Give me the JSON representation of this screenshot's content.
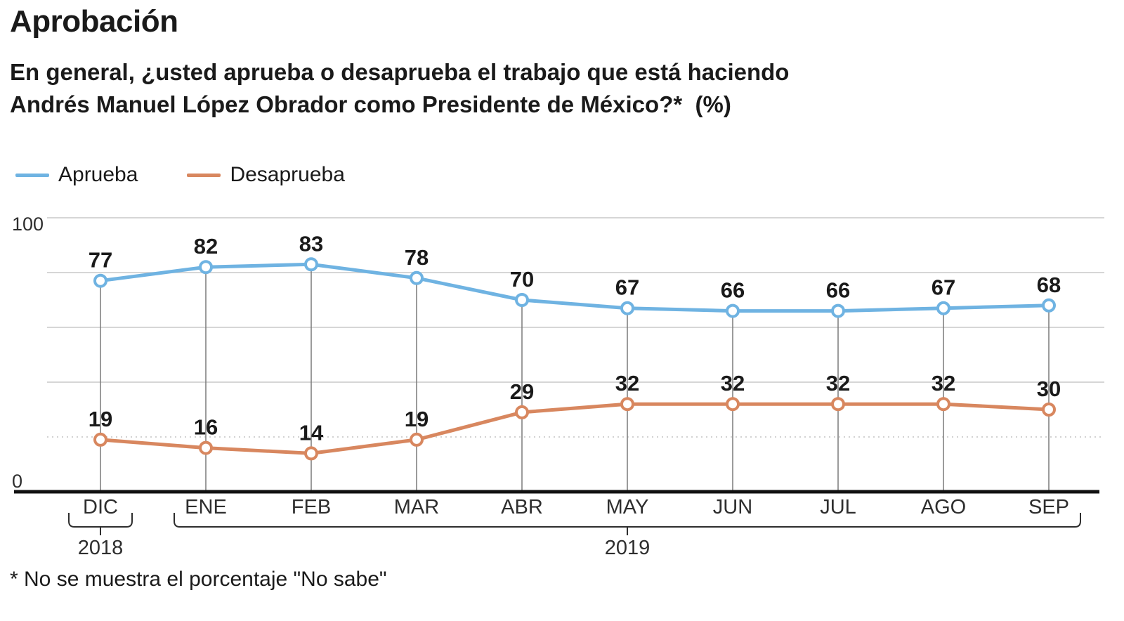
{
  "header": {
    "title": "Aprobación",
    "subtitle_line1": "En general, ¿usted aprueba o desaprueba el trabajo que está haciendo",
    "subtitle_line2": "Andrés Manuel López Obrador como Presidente de México?*  (%)"
  },
  "legend": {
    "items": [
      {
        "label": "Aprueba",
        "color": "#6FB3E2"
      },
      {
        "label": "Desaprueba",
        "color": "#D8875F"
      }
    ]
  },
  "chart_data": {
    "type": "line",
    "title": "Aprobación",
    "categories": [
      "DIC",
      "ENE",
      "FEB",
      "MAR",
      "ABR",
      "MAY",
      "JUN",
      "JUL",
      "AGO",
      "SEP"
    ],
    "year_groups": [
      {
        "label": "2018",
        "from": "DIC",
        "to": "DIC"
      },
      {
        "label": "2019",
        "from": "ENE",
        "to": "SEP"
      }
    ],
    "series": [
      {
        "name": "Aprueba",
        "color": "#6FB3E2",
        "values": [
          77,
          82,
          83,
          78,
          70,
          67,
          66,
          66,
          67,
          68
        ]
      },
      {
        "name": "Desaprueba",
        "color": "#D8875F",
        "values": [
          19,
          16,
          14,
          19,
          29,
          32,
          32,
          32,
          32,
          30
        ]
      }
    ],
    "ylim": [
      0,
      100
    ],
    "ytick_labels": [
      0,
      100
    ],
    "gridlines": [
      {
        "value": 100,
        "style": "solid"
      },
      {
        "value": 80,
        "style": "solid"
      },
      {
        "value": 60,
        "style": "solid"
      },
      {
        "value": 40,
        "style": "solid"
      },
      {
        "value": 20,
        "style": "dotted"
      }
    ],
    "grid": "horizontal",
    "legend_position": "top-left",
    "point_labels_shown": true
  },
  "footnote": "* No se muestra el porcentaje \"No sabe\"",
  "colors": {
    "approve": "#6FB3E2",
    "disapprove": "#D8875F",
    "axis": "#111111",
    "gridline": "#c9c9c9",
    "gridline_dotted": "#d2d2d2",
    "column_line": "#7a7a7a",
    "text": "#1a1a1a",
    "tick_text": "#2e2e2e"
  }
}
